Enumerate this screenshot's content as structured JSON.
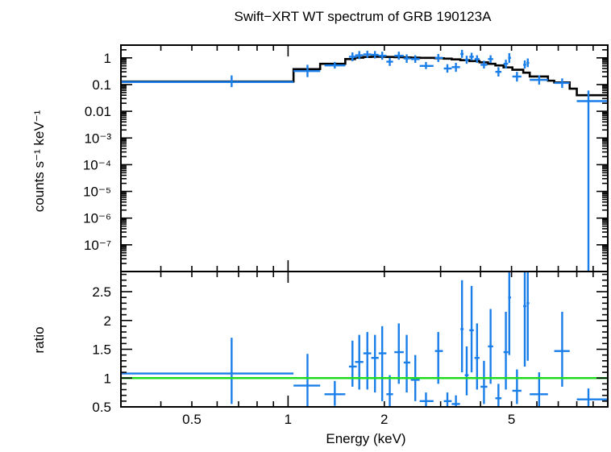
{
  "chart_data": [
    {
      "type": "scatter",
      "title": "Swift−XRT WT spectrum of GRB 190123A",
      "ylabel": "counts s⁻¹ keV⁻¹",
      "xscale": "log",
      "yscale": "log",
      "xlim": [
        0.3,
        10
      ],
      "ylim": [
        1e-08,
        3
      ],
      "yticks": [
        {
          "value": 1,
          "label": "1"
        },
        {
          "value": 0.1,
          "label": "0.1"
        },
        {
          "value": 0.01,
          "label": "0.01"
        },
        {
          "value": 0.001,
          "label": "10⁻³"
        },
        {
          "value": 0.0001,
          "label": "10⁻⁴"
        },
        {
          "value": 1e-05,
          "label": "10⁻⁵"
        },
        {
          "value": 1e-06,
          "label": "10⁻⁶"
        },
        {
          "value": 1e-07,
          "label": "10⁻⁷"
        }
      ],
      "colors": {
        "data": "#1a7ee8",
        "model": "#000000"
      },
      "series": [
        {
          "points": [
            {
              "x": 0.666,
              "xlo": 0.3,
              "xhi": 1.04,
              "y": 0.125,
              "ylo": 0.08,
              "yhi": 0.22
            },
            {
              "x": 1.15,
              "xlo": 1.04,
              "xhi": 1.26,
              "y": 0.32,
              "ylo": 0.19,
              "yhi": 0.55
            },
            {
              "x": 1.4,
              "xlo": 1.3,
              "xhi": 1.51,
              "y": 0.52,
              "ylo": 0.4,
              "yhi": 0.7
            },
            {
              "x": 1.59,
              "xlo": 1.55,
              "xhi": 1.64,
              "y": 1.1,
              "ylo": 0.75,
              "yhi": 1.6
            },
            {
              "x": 1.67,
              "xlo": 1.62,
              "xhi": 1.72,
              "y": 1.25,
              "ylo": 0.9,
              "yhi": 1.8
            },
            {
              "x": 1.77,
              "xlo": 1.72,
              "xhi": 1.82,
              "y": 1.35,
              "ylo": 1.0,
              "yhi": 1.85
            },
            {
              "x": 1.87,
              "xlo": 1.82,
              "xhi": 1.92,
              "y": 1.3,
              "ylo": 0.95,
              "yhi": 1.8
            },
            {
              "x": 1.97,
              "xlo": 1.92,
              "xhi": 2.03,
              "y": 1.2,
              "ylo": 0.85,
              "yhi": 1.7
            },
            {
              "x": 2.08,
              "xlo": 2.03,
              "xhi": 2.13,
              "y": 0.72,
              "ylo": 0.5,
              "yhi": 1.0
            },
            {
              "x": 2.22,
              "xlo": 2.15,
              "xhi": 2.3,
              "y": 1.2,
              "ylo": 0.85,
              "yhi": 1.7
            },
            {
              "x": 2.35,
              "xlo": 2.3,
              "xhi": 2.41,
              "y": 0.95,
              "ylo": 0.65,
              "yhi": 1.35
            },
            {
              "x": 2.5,
              "xlo": 2.42,
              "xhi": 2.58,
              "y": 0.9,
              "ylo": 0.65,
              "yhi": 1.25
            },
            {
              "x": 2.7,
              "xlo": 2.58,
              "xhi": 2.85,
              "y": 0.5,
              "ylo": 0.38,
              "yhi": 0.7
            },
            {
              "x": 2.95,
              "xlo": 2.88,
              "xhi": 3.05,
              "y": 1.0,
              "ylo": 0.7,
              "yhi": 1.4
            },
            {
              "x": 3.15,
              "xlo": 3.07,
              "xhi": 3.25,
              "y": 0.4,
              "ylo": 0.28,
              "yhi": 0.58
            },
            {
              "x": 3.35,
              "xlo": 3.25,
              "xhi": 3.45,
              "y": 0.45,
              "ylo": 0.3,
              "yhi": 0.65
            },
            {
              "x": 3.5,
              "xlo": 3.46,
              "xhi": 3.54,
              "y": 1.4,
              "ylo": 1.0,
              "yhi": 2.0
            },
            {
              "x": 3.62,
              "xlo": 3.57,
              "xhi": 3.67,
              "y": 0.85,
              "ylo": 0.6,
              "yhi": 1.2
            },
            {
              "x": 3.75,
              "xlo": 3.69,
              "xhi": 3.81,
              "y": 1.1,
              "ylo": 0.8,
              "yhi": 1.55
            },
            {
              "x": 3.9,
              "xlo": 3.83,
              "xhi": 3.97,
              "y": 0.9,
              "ylo": 0.65,
              "yhi": 1.25
            },
            {
              "x": 4.1,
              "xlo": 4.0,
              "xhi": 4.2,
              "y": 0.55,
              "ylo": 0.4,
              "yhi": 0.78
            },
            {
              "x": 4.3,
              "xlo": 4.22,
              "xhi": 4.38,
              "y": 0.9,
              "ylo": 0.65,
              "yhi": 1.25
            },
            {
              "x": 4.55,
              "xlo": 4.45,
              "xhi": 4.65,
              "y": 0.3,
              "ylo": 0.2,
              "yhi": 0.45
            },
            {
              "x": 4.8,
              "xlo": 4.72,
              "xhi": 4.88,
              "y": 0.6,
              "ylo": 0.4,
              "yhi": 0.85
            },
            {
              "x": 4.92,
              "xlo": 4.88,
              "xhi": 4.98,
              "y": 1.0,
              "ylo": 0.65,
              "yhi": 1.5
            },
            {
              "x": 5.2,
              "xlo": 5.03,
              "xhi": 5.37,
              "y": 0.2,
              "ylo": 0.13,
              "yhi": 0.3
            },
            {
              "x": 5.5,
              "xlo": 5.44,
              "xhi": 5.56,
              "y": 0.55,
              "ylo": 0.4,
              "yhi": 0.8
            },
            {
              "x": 5.62,
              "xlo": 5.57,
              "xhi": 5.68,
              "y": 0.65,
              "ylo": 0.45,
              "yhi": 0.95
            },
            {
              "x": 6.1,
              "xlo": 5.7,
              "xhi": 6.5,
              "y": 0.15,
              "ylo": 0.1,
              "yhi": 0.22
            },
            {
              "x": 7.2,
              "xlo": 6.8,
              "xhi": 7.6,
              "y": 0.115,
              "ylo": 0.075,
              "yhi": 0.17
            },
            {
              "x": 8.7,
              "xlo": 8.0,
              "xhi": 10.0,
              "y": 0.024,
              "ylo": 1e-08,
              "yhi": 0.06
            }
          ]
        },
        {
          "drawstyle": "steps",
          "steps": [
            {
              "x0": 0.3,
              "x1": 1.04,
              "y": 0.13
            },
            {
              "x0": 1.04,
              "x1": 1.26,
              "y": 0.38
            },
            {
              "x0": 1.26,
              "x1": 1.51,
              "y": 0.6
            },
            {
              "x0": 1.51,
              "x1": 1.62,
              "y": 0.9
            },
            {
              "x0": 1.62,
              "x1": 1.72,
              "y": 1.02
            },
            {
              "x0": 1.72,
              "x1": 1.82,
              "y": 1.08
            },
            {
              "x0": 1.82,
              "x1": 1.92,
              "y": 1.1
            },
            {
              "x0": 1.92,
              "x1": 2.03,
              "y": 1.1
            },
            {
              "x0": 2.03,
              "x1": 2.15,
              "y": 1.08
            },
            {
              "x0": 2.15,
              "x1": 2.3,
              "y": 1.06
            },
            {
              "x0": 2.3,
              "x1": 2.42,
              "y": 1.04
            },
            {
              "x0": 2.42,
              "x1": 2.58,
              "y": 1.02
            },
            {
              "x0": 2.58,
              "x1": 2.88,
              "y": 1.0
            },
            {
              "x0": 2.88,
              "x1": 3.07,
              "y": 0.97
            },
            {
              "x0": 3.07,
              "x1": 3.25,
              "y": 0.93
            },
            {
              "x0": 3.25,
              "x1": 3.46,
              "y": 0.88
            },
            {
              "x0": 3.46,
              "x1": 3.69,
              "y": 0.82
            },
            {
              "x0": 3.69,
              "x1": 3.97,
              "y": 0.76
            },
            {
              "x0": 3.97,
              "x1": 4.22,
              "y": 0.68
            },
            {
              "x0": 4.22,
              "x1": 4.45,
              "y": 0.6
            },
            {
              "x0": 4.45,
              "x1": 4.72,
              "y": 0.52
            },
            {
              "x0": 4.72,
              "x1": 5.03,
              "y": 0.44
            },
            {
              "x0": 5.03,
              "x1": 5.44,
              "y": 0.36
            },
            {
              "x0": 5.44,
              "x1": 5.7,
              "y": 0.28
            },
            {
              "x0": 5.7,
              "x1": 6.5,
              "y": 0.2
            },
            {
              "x0": 6.5,
              "x1": 6.8,
              "y": 0.14
            },
            {
              "x0": 6.8,
              "x1": 7.6,
              "y": 0.12
            },
            {
              "x0": 7.6,
              "x1": 8.0,
              "y": 0.07
            },
            {
              "x0": 8.0,
              "x1": 10.0,
              "y": 0.04
            }
          ]
        }
      ]
    },
    {
      "type": "scatter",
      "xlabel": "Energy (keV)",
      "ylabel": "ratio",
      "xscale": "log",
      "xlim": [
        0.3,
        10
      ],
      "ylim": [
        0.5,
        2.85
      ],
      "xticks": [
        {
          "value": 0.5,
          "label": "0.5"
        },
        {
          "value": 1,
          "label": "1"
        },
        {
          "value": 2,
          "label": "2"
        },
        {
          "value": 5,
          "label": "5"
        }
      ],
      "yticks": [
        {
          "value": 0.5,
          "label": "0.5"
        },
        {
          "value": 1,
          "label": "1"
        },
        {
          "value": 1.5,
          "label": "1.5"
        },
        {
          "value": 2,
          "label": "2"
        },
        {
          "value": 2.5,
          "label": "2.5"
        }
      ],
      "reference_line": {
        "y": 1,
        "color": "#1fdc1f"
      },
      "colors": {
        "data": "#1a7ee8"
      },
      "series": [
        {
          "points": [
            {
              "x": 0.666,
              "xlo": 0.3,
              "xhi": 1.04,
              "y": 1.08,
              "ylo": 0.55,
              "yhi": 1.7
            },
            {
              "x": 1.15,
              "xlo": 1.04,
              "xhi": 1.26,
              "y": 0.87,
              "ylo": 0.5,
              "yhi": 1.42
            },
            {
              "x": 1.4,
              "xlo": 1.3,
              "xhi": 1.51,
              "y": 0.72,
              "ylo": 0.52,
              "yhi": 0.95
            },
            {
              "x": 1.59,
              "xlo": 1.55,
              "xhi": 1.64,
              "y": 1.2,
              "ylo": 0.85,
              "yhi": 1.65
            },
            {
              "x": 1.67,
              "xlo": 1.62,
              "xhi": 1.72,
              "y": 1.28,
              "ylo": 0.8,
              "yhi": 1.75
            },
            {
              "x": 1.77,
              "xlo": 1.72,
              "xhi": 1.82,
              "y": 1.43,
              "ylo": 0.8,
              "yhi": 1.8
            },
            {
              "x": 1.87,
              "xlo": 1.82,
              "xhi": 1.92,
              "y": 1.35,
              "ylo": 0.75,
              "yhi": 1.75
            },
            {
              "x": 1.97,
              "xlo": 1.92,
              "xhi": 2.03,
              "y": 1.43,
              "ylo": 0.6,
              "yhi": 1.9
            },
            {
              "x": 2.08,
              "xlo": 2.03,
              "xhi": 2.13,
              "y": 0.72,
              "ylo": 0.5,
              "yhi": 1.05
            },
            {
              "x": 2.22,
              "xlo": 2.15,
              "xhi": 2.3,
              "y": 1.45,
              "ylo": 0.9,
              "yhi": 1.95
            },
            {
              "x": 2.35,
              "xlo": 2.3,
              "xhi": 2.41,
              "y": 1.27,
              "ylo": 0.75,
              "yhi": 1.75
            },
            {
              "x": 2.5,
              "xlo": 2.42,
              "xhi": 2.58,
              "y": 0.97,
              "ylo": 0.6,
              "yhi": 1.4
            },
            {
              "x": 2.7,
              "xlo": 2.58,
              "xhi": 2.85,
              "y": 0.6,
              "ylo": 0.5,
              "yhi": 0.75
            },
            {
              "x": 2.95,
              "xlo": 2.88,
              "xhi": 3.05,
              "y": 1.47,
              "ylo": 0.9,
              "yhi": 1.8
            },
            {
              "x": 3.15,
              "xlo": 3.07,
              "xhi": 3.25,
              "y": 0.6,
              "ylo": 0.5,
              "yhi": 0.75
            },
            {
              "x": 3.35,
              "xlo": 3.25,
              "xhi": 3.45,
              "y": 0.55,
              "ylo": 0.5,
              "yhi": 0.7
            },
            {
              "x": 3.5,
              "xlo": 3.46,
              "xhi": 3.54,
              "y": 1.85,
              "ylo": 1.1,
              "yhi": 2.7
            },
            {
              "x": 3.62,
              "xlo": 3.57,
              "xhi": 3.67,
              "y": 1.05,
              "ylo": 0.7,
              "yhi": 1.55
            },
            {
              "x": 3.75,
              "xlo": 3.69,
              "xhi": 3.81,
              "y": 1.83,
              "ylo": 1.1,
              "yhi": 2.6
            },
            {
              "x": 3.9,
              "xlo": 3.83,
              "xhi": 3.97,
              "y": 1.35,
              "ylo": 0.8,
              "yhi": 1.95
            },
            {
              "x": 4.1,
              "xlo": 4.0,
              "xhi": 4.2,
              "y": 0.85,
              "ylo": 0.55,
              "yhi": 1.3
            },
            {
              "x": 4.3,
              "xlo": 4.22,
              "xhi": 4.38,
              "y": 1.55,
              "ylo": 0.9,
              "yhi": 2.2
            },
            {
              "x": 4.55,
              "xlo": 4.45,
              "xhi": 4.65,
              "y": 0.65,
              "ylo": 0.5,
              "yhi": 0.9
            },
            {
              "x": 4.8,
              "xlo": 4.72,
              "xhi": 4.88,
              "y": 1.45,
              "ylo": 0.8,
              "yhi": 2.15
            },
            {
              "x": 4.92,
              "xlo": 4.88,
              "xhi": 4.98,
              "y": 2.4,
              "ylo": 1.4,
              "yhi": 2.85
            },
            {
              "x": 5.2,
              "xlo": 5.03,
              "xhi": 5.37,
              "y": 0.78,
              "ylo": 0.55,
              "yhi": 1.15
            },
            {
              "x": 5.5,
              "xlo": 5.44,
              "xhi": 5.56,
              "y": 2.25,
              "ylo": 1.2,
              "yhi": 2.85
            },
            {
              "x": 5.62,
              "xlo": 5.57,
              "xhi": 5.68,
              "y": 2.3,
              "ylo": 1.3,
              "yhi": 2.85
            },
            {
              "x": 6.1,
              "xlo": 5.7,
              "xhi": 6.5,
              "y": 0.72,
              "ylo": 0.5,
              "yhi": 1.1
            },
            {
              "x": 7.2,
              "xlo": 6.8,
              "xhi": 7.6,
              "y": 1.47,
              "ylo": 0.85,
              "yhi": 2.15
            },
            {
              "x": 8.7,
              "xlo": 8.0,
              "xhi": 10.0,
              "y": 0.63,
              "ylo": 0.5,
              "yhi": 0.82
            }
          ]
        }
      ]
    }
  ]
}
